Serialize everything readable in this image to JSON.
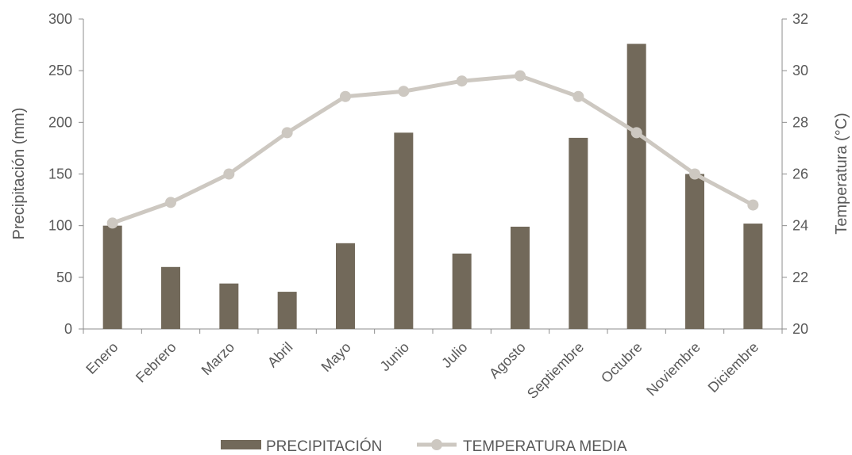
{
  "chart_data": {
    "type": "bar+line",
    "categories": [
      "Enero",
      "Febrero",
      "Marzo",
      "Abril",
      "Mayo",
      "Junio",
      "Julio",
      "Agosto",
      "Septiembre",
      "Octubre",
      "Noviembre",
      "Diciembre"
    ],
    "series": [
      {
        "name": "PRECIPITACIÓN",
        "type": "bar",
        "axis": "left",
        "color": "#72695a",
        "values": [
          100,
          60,
          44,
          36,
          83,
          190,
          73,
          99,
          185,
          276,
          150,
          102
        ]
      },
      {
        "name": "TEMPERATURA MEDIA",
        "type": "line",
        "axis": "right",
        "color": "#cdc8c1",
        "values": [
          24.1,
          24.9,
          26.0,
          27.6,
          29.0,
          29.2,
          29.6,
          29.8,
          29.0,
          27.6,
          26.0,
          24.8
        ]
      }
    ],
    "ylabel": "Precipitación (mm)",
    "y2label": "Temperatura (°C)",
    "ylim": [
      0,
      300
    ],
    "yticks": [
      "0",
      "50",
      "100",
      "150",
      "200",
      "250",
      "300"
    ],
    "y2lim": [
      20,
      32
    ],
    "y2ticks": [
      "20",
      "22",
      "24",
      "26",
      "28",
      "30",
      "32"
    ],
    "grid": false,
    "legend": "bottom",
    "axis_color": "#8c8c8c"
  }
}
